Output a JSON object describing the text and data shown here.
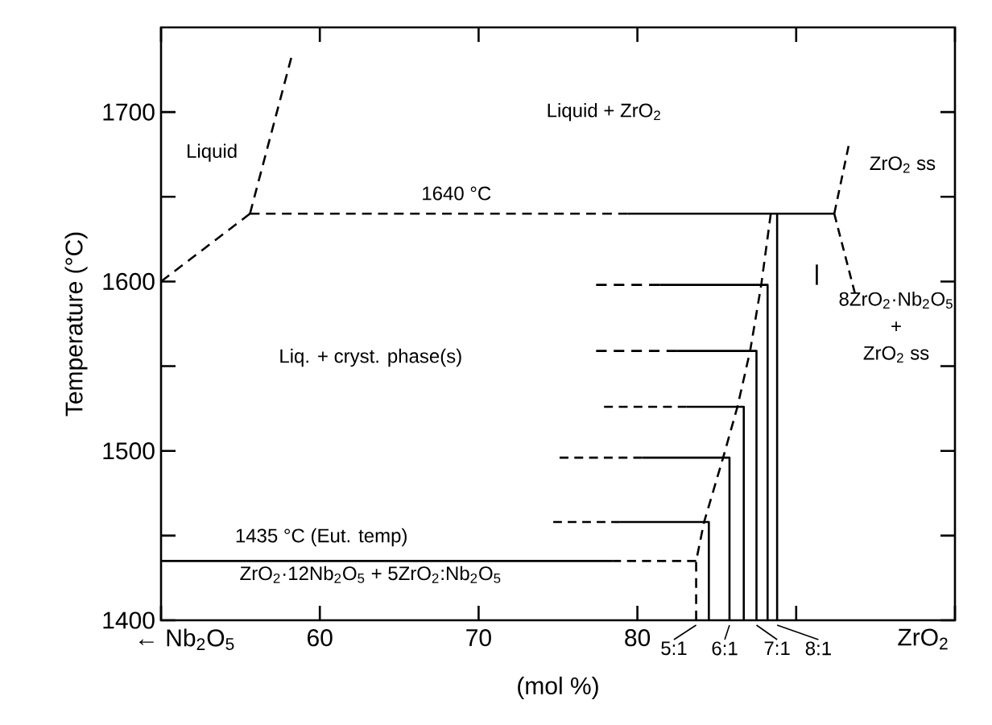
{
  "chart_data": {
    "type": "line",
    "xlabel": "(mol %)",
    "ylabel": "Temperature (°C)",
    "xlim": [
      50,
      100
    ],
    "ylim": [
      1400,
      1750
    ],
    "xticks": [
      {
        "value": 50,
        "label": null
      },
      60,
      70,
      80,
      {
        "value": 90,
        "label": null
      },
      {
        "value": 100,
        "label": null
      }
    ],
    "yticks": [
      1400,
      {
        "value": 1450,
        "label": null
      },
      1500,
      {
        "value": 1550,
        "label": null
      },
      1600,
      {
        "value": 1650,
        "label": null
      },
      1700
    ],
    "series": [
      {
        "x": [
          50,
          55.6
        ],
        "values": [
          1600,
          1640
        ],
        "color": "#000000",
        "line_style": "dashed"
      },
      {
        "x": [
          55.6,
          58.2
        ],
        "values": [
          1640,
          1732
        ],
        "color": "#000000",
        "line_style": "dashed"
      },
      {
        "x": [
          55.6,
          79.4
        ],
        "values": [
          1640,
          1640
        ],
        "color": "#000000",
        "line_style": "dashed"
      },
      {
        "x": [
          79.4,
          92.4
        ],
        "values": [
          1640,
          1640
        ],
        "color": "#000000",
        "line_style": "solid"
      },
      {
        "x": [
          92.4,
          93.3
        ],
        "values": [
          1640,
          1680
        ],
        "color": "#000000",
        "line_style": "dashed"
      },
      {
        "x": [
          92.4,
          93.7
        ],
        "values": [
          1640,
          1593
        ],
        "color": "#000000",
        "line_style": "dashed"
      },
      {
        "x": [
          91.3,
          91.3
        ],
        "values": [
          1598,
          1610
        ],
        "color": "#000000",
        "line_style": "solid"
      },
      {
        "x": [
          77.4,
          81.4
        ],
        "values": [
          1598,
          1598
        ],
        "color": "#000000",
        "line_style": "dashed"
      },
      {
        "x": [
          81.4,
          88.2,
          88.2
        ],
        "values": [
          1598,
          1598,
          1400
        ],
        "color": "#000000",
        "line_style": "solid"
      },
      {
        "x": [
          77.4,
          82.5
        ],
        "values": [
          1559,
          1559
        ],
        "color": "#000000",
        "line_style": "dashed"
      },
      {
        "x": [
          82.5,
          87.5,
          87.5
        ],
        "values": [
          1559,
          1559,
          1400
        ],
        "color": "#000000",
        "line_style": "solid"
      },
      {
        "x": [
          77.9,
          83.1
        ],
        "values": [
          1526,
          1526
        ],
        "color": "#000000",
        "line_style": "dashed"
      },
      {
        "x": [
          83.1,
          86.7,
          86.7
        ],
        "values": [
          1526,
          1526,
          1400
        ],
        "color": "#000000",
        "line_style": "solid"
      },
      {
        "x": [
          75.1,
          80.3
        ],
        "values": [
          1496,
          1496
        ],
        "color": "#000000",
        "line_style": "dashed"
      },
      {
        "x": [
          80.3,
          85.8,
          85.8
        ],
        "values": [
          1496,
          1496,
          1400
        ],
        "color": "#000000",
        "line_style": "solid"
      },
      {
        "x": [
          74.7,
          78.9
        ],
        "values": [
          1458,
          1458
        ],
        "color": "#000000",
        "line_style": "dashed"
      },
      {
        "x": [
          78.9,
          84.5,
          84.5
        ],
        "values": [
          1458,
          1458,
          1400
        ],
        "color": "#000000",
        "line_style": "solid"
      },
      {
        "x": [
          50,
          78.4
        ],
        "values": [
          1435,
          1435
        ],
        "color": "#000000",
        "line_style": "solid"
      },
      {
        "x": [
          78.4,
          83.7
        ],
        "values": [
          1435,
          1435
        ],
        "color": "#000000",
        "line_style": "dashed"
      },
      {
        "x": [
          83.7,
          83.7,
          84.2,
          85.4,
          86.3,
          87.1,
          87.8,
          88.4
        ],
        "values": [
          1400,
          1435,
          1458,
          1496,
          1526,
          1559,
          1598,
          1640
        ],
        "color": "#000000",
        "line_style": "dashed"
      },
      {
        "x": [
          88.8,
          88.8
        ],
        "values": [
          1400,
          1640
        ],
        "color": "#000000",
        "line_style": "solid"
      }
    ],
    "annotations": [
      "Liquid",
      "Liquid + ZrO$_{2}$",
      "ZrO$_{2}$ ss",
      "1640 °C",
      "Liq. + cryst. phase(s)",
      "8ZrO$_{2}$·Nb$_{2}$O$_{5}$",
      "+",
      "ZrO$_{2}$ ss",
      "1435 °C (Eut. temp)",
      "ZrO$_{2}$·12Nb$_{2}$O$_{5}$ + 5ZrO$_{2}$:Nb$_{2}$O$_{5}$",
      "← Nb$_{2}$O$_{5}$",
      "ZrO$_{2}$",
      {
        "text": "5:1",
        "x": 83.7,
        "y": 1400
      },
      {
        "text": "6:1",
        "x": 85.8,
        "y": 1400
      },
      {
        "text": "7:1",
        "x": 87.5,
        "y": 1400
      },
      {
        "text": "8:1",
        "x": 88.8,
        "y": 1400
      }
    ]
  }
}
